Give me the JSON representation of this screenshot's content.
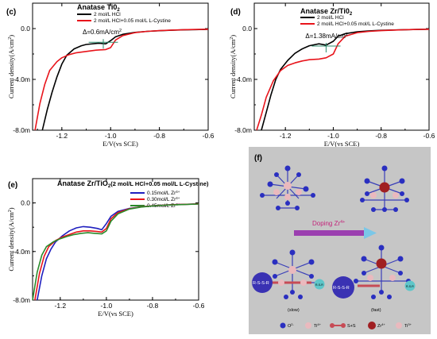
{
  "chart_data": [
    {
      "panel": "(c)",
      "type": "line",
      "title": "Anatase Ti0",
      "title_sub": "2",
      "xlabel": "E/V(vs SCE)",
      "ylabel": "Current density(A/cm",
      "ylabel_tail": ")",
      "xlim": [
        -1.32,
        -0.6
      ],
      "ylim": [
        -8.0,
        2.0
      ],
      "xticks": [
        -1.2,
        -1.0,
        -0.8,
        -0.6
      ],
      "xtick_labels": [
        "-1.2",
        "-1.0",
        "-0.8",
        "-0.6"
      ],
      "yticks": [
        -8,
        -4,
        0
      ],
      "ytick_labels": [
        "-8.0m",
        "-4.0m",
        "0.0"
      ],
      "annotation": {
        "text": "Δ=0.6mA/cm",
        "sup": "2",
        "x": -1.03,
        "y": -0.7
      },
      "series": [
        {
          "name": "2 mol/L HCl",
          "color": "#000000",
          "x": [
            -1.28,
            -1.26,
            -1.24,
            -1.22,
            -1.2,
            -1.18,
            -1.15,
            -1.12,
            -1.1,
            -1.05,
            -1.02,
            -1.0,
            -0.98,
            -0.95,
            -0.9,
            -0.85,
            -0.8,
            -0.75,
            -0.7,
            -0.65,
            -0.6
          ],
          "y": [
            -8.0,
            -6.4,
            -5.0,
            -3.8,
            -2.8,
            -2.1,
            -1.6,
            -1.35,
            -1.25,
            -1.15,
            -1.2,
            -0.95,
            -0.65,
            -0.45,
            -0.3,
            -0.22,
            -0.17,
            -0.13,
            -0.1,
            -0.08,
            -0.06
          ]
        },
        {
          "name": "2 mol/L HCl+0.05 mol/L L-Cystine",
          "color": "#e8141b",
          "x": [
            -1.31,
            -1.29,
            -1.27,
            -1.25,
            -1.22,
            -1.2,
            -1.17,
            -1.14,
            -1.1,
            -1.06,
            -1.02,
            -1.0,
            -0.98,
            -0.95,
            -0.9,
            -0.85,
            -0.8,
            -0.75,
            -0.7,
            -0.65,
            -0.6
          ],
          "y": [
            -8.0,
            -5.9,
            -4.4,
            -3.3,
            -2.6,
            -2.3,
            -2.05,
            -1.9,
            -1.8,
            -1.7,
            -1.65,
            -1.5,
            -0.9,
            -0.55,
            -0.32,
            -0.22,
            -0.16,
            -0.12,
            -0.09,
            -0.07,
            -0.05
          ]
        }
      ]
    },
    {
      "panel": "(d)",
      "type": "line",
      "title": "Anatase Zr/Ti0",
      "title_sub": "2",
      "xlabel": "E/V(vs SCE)",
      "ylabel": "Current density(A/cm",
      "ylabel_tail": ")",
      "xlim": [
        -1.33,
        -0.6
      ],
      "ylim": [
        -8.0,
        2.0
      ],
      "xticks": [
        -1.2,
        -1.0,
        -0.8,
        -0.6
      ],
      "xtick_labels": [
        "-1.2",
        "-1.0",
        "-0.8",
        "-0.6"
      ],
      "yticks": [
        -8,
        -4,
        0
      ],
      "ytick_labels": [
        "-8.0m",
        "-4.0m",
        "0.0"
      ],
      "annotation": {
        "text": "Δ=1.38mA/cm",
        "sup": "2",
        "x": -1.03,
        "y": -1.0
      },
      "series": [
        {
          "name": "2 mol/L HCl",
          "color": "#000000",
          "x": [
            -1.3,
            -1.28,
            -1.26,
            -1.24,
            -1.22,
            -1.19,
            -1.16,
            -1.13,
            -1.1,
            -1.06,
            -1.03,
            -1.0,
            -0.98,
            -0.95,
            -0.9,
            -0.85,
            -0.8,
            -0.75,
            -0.7,
            -0.65,
            -0.6
          ],
          "y": [
            -8.0,
            -6.6,
            -5.2,
            -4.0,
            -3.2,
            -2.5,
            -1.95,
            -1.6,
            -1.35,
            -1.2,
            -1.3,
            -1.0,
            -0.6,
            -0.4,
            -0.25,
            -0.18,
            -0.14,
            -0.11,
            -0.09,
            -0.07,
            -0.05
          ]
        },
        {
          "name": "2 mol/L HCl+0.05 mol/L L-Cystine",
          "color": "#e8141b",
          "x": [
            -1.32,
            -1.3,
            -1.28,
            -1.25,
            -1.22,
            -1.19,
            -1.16,
            -1.13,
            -1.1,
            -1.06,
            -1.03,
            -1.0,
            -0.98,
            -0.95,
            -0.9,
            -0.85,
            -0.8,
            -0.75,
            -0.7,
            -0.65,
            -0.6
          ],
          "y": [
            -8.0,
            -6.8,
            -5.4,
            -4.1,
            -3.3,
            -2.9,
            -2.7,
            -2.55,
            -2.45,
            -2.4,
            -2.3,
            -2.0,
            -1.2,
            -0.6,
            -0.32,
            -0.22,
            -0.16,
            -0.12,
            -0.09,
            -0.07,
            -0.05
          ]
        }
      ]
    },
    {
      "panel": "(e)",
      "type": "line",
      "title": "Anatase Zr/TiO",
      "title_sub": "2",
      "title_tail": "(2 mol/L HCl+0.05 mol/L L-Cystine)",
      "xlabel": "E/V(vs SCE)",
      "ylabel": "Current density(A/cm",
      "ylabel_tail": ")",
      "xlim": [
        -1.32,
        -0.6
      ],
      "ylim": [
        -8.0,
        2.0
      ],
      "xticks": [
        -1.2,
        -1.0,
        -0.8,
        -0.6
      ],
      "xtick_labels": [
        "-1.2",
        "-1.0",
        "-0.8",
        "-0.6"
      ],
      "yticks": [
        -8,
        -4,
        0
      ],
      "ytick_labels": [
        "-8.0m",
        "-4.0m",
        "0.0"
      ],
      "series": [
        {
          "name": "0.15mol/L Zr",
          "sup": "4+",
          "color": "#1f1fbf",
          "x": [
            -1.3,
            -1.28,
            -1.26,
            -1.24,
            -1.22,
            -1.19,
            -1.16,
            -1.13,
            -1.1,
            -1.07,
            -1.04,
            -1.02,
            -1.0,
            -0.98,
            -0.95,
            -0.9,
            -0.85,
            -0.8,
            -0.75,
            -0.7,
            -0.65,
            -0.6
          ],
          "y": [
            -8.0,
            -6.0,
            -4.6,
            -3.8,
            -3.2,
            -2.7,
            -2.3,
            -2.05,
            -1.95,
            -2.0,
            -2.1,
            -2.2,
            -1.7,
            -1.1,
            -0.7,
            -0.45,
            -0.32,
            -0.24,
            -0.18,
            -0.14,
            -0.11,
            -0.08
          ]
        },
        {
          "name": "0.30mol/L Zr",
          "sup": "4+",
          "color": "#e8141b",
          "x": [
            -1.31,
            -1.29,
            -1.27,
            -1.25,
            -1.22,
            -1.19,
            -1.16,
            -1.13,
            -1.1,
            -1.07,
            -1.04,
            -1.02,
            -1.0,
            -0.98,
            -0.95,
            -0.9,
            -0.85,
            -0.8,
            -0.75,
            -0.7,
            -0.65,
            -0.6
          ],
          "y": [
            -8.0,
            -5.8,
            -4.4,
            -3.6,
            -3.1,
            -2.8,
            -2.6,
            -2.4,
            -2.3,
            -2.3,
            -2.35,
            -2.4,
            -2.1,
            -1.3,
            -0.8,
            -0.48,
            -0.33,
            -0.24,
            -0.18,
            -0.14,
            -0.11,
            -0.08
          ]
        },
        {
          "name": "0.45mol/L Zr",
          "sup": "4+",
          "color": "#2a8a2a",
          "x": [
            -1.32,
            -1.3,
            -1.28,
            -1.26,
            -1.23,
            -1.2,
            -1.17,
            -1.14,
            -1.11,
            -1.08,
            -1.05,
            -1.02,
            -1.0,
            -0.98,
            -0.95,
            -0.9,
            -0.85,
            -0.8,
            -0.75,
            -0.7,
            -0.65,
            -0.6
          ],
          "y": [
            -8.0,
            -5.7,
            -4.3,
            -3.6,
            -3.2,
            -2.95,
            -2.75,
            -2.6,
            -2.5,
            -2.45,
            -2.5,
            -2.55,
            -2.3,
            -1.5,
            -0.9,
            -0.5,
            -0.34,
            -0.25,
            -0.19,
            -0.15,
            -0.12,
            -0.09
          ]
        }
      ]
    }
  ],
  "panel_f": {
    "label": "(f)",
    "arrow_label": "Doping Zr",
    "arrow_sup": "4+",
    "mol_left": "R-S-S-R",
    "mol_right": "R-S-S-R",
    "small_mol": "R-S-R",
    "slow": "(slow)",
    "fast": "(fast)",
    "legend": [
      {
        "text": "O",
        "sup": "2-",
        "color": "#2a2fc0"
      },
      {
        "text": "Ti",
        "sup": "4+",
        "color": "#e8b7bd"
      },
      {
        "text": "S+S",
        "color": "#c74b55"
      },
      {
        "text": "Zr",
        "sup": "4+",
        "color": "#a01f22"
      },
      {
        "text": "Ti",
        "sup": "3+",
        "color": "#e8b7bd"
      }
    ]
  }
}
